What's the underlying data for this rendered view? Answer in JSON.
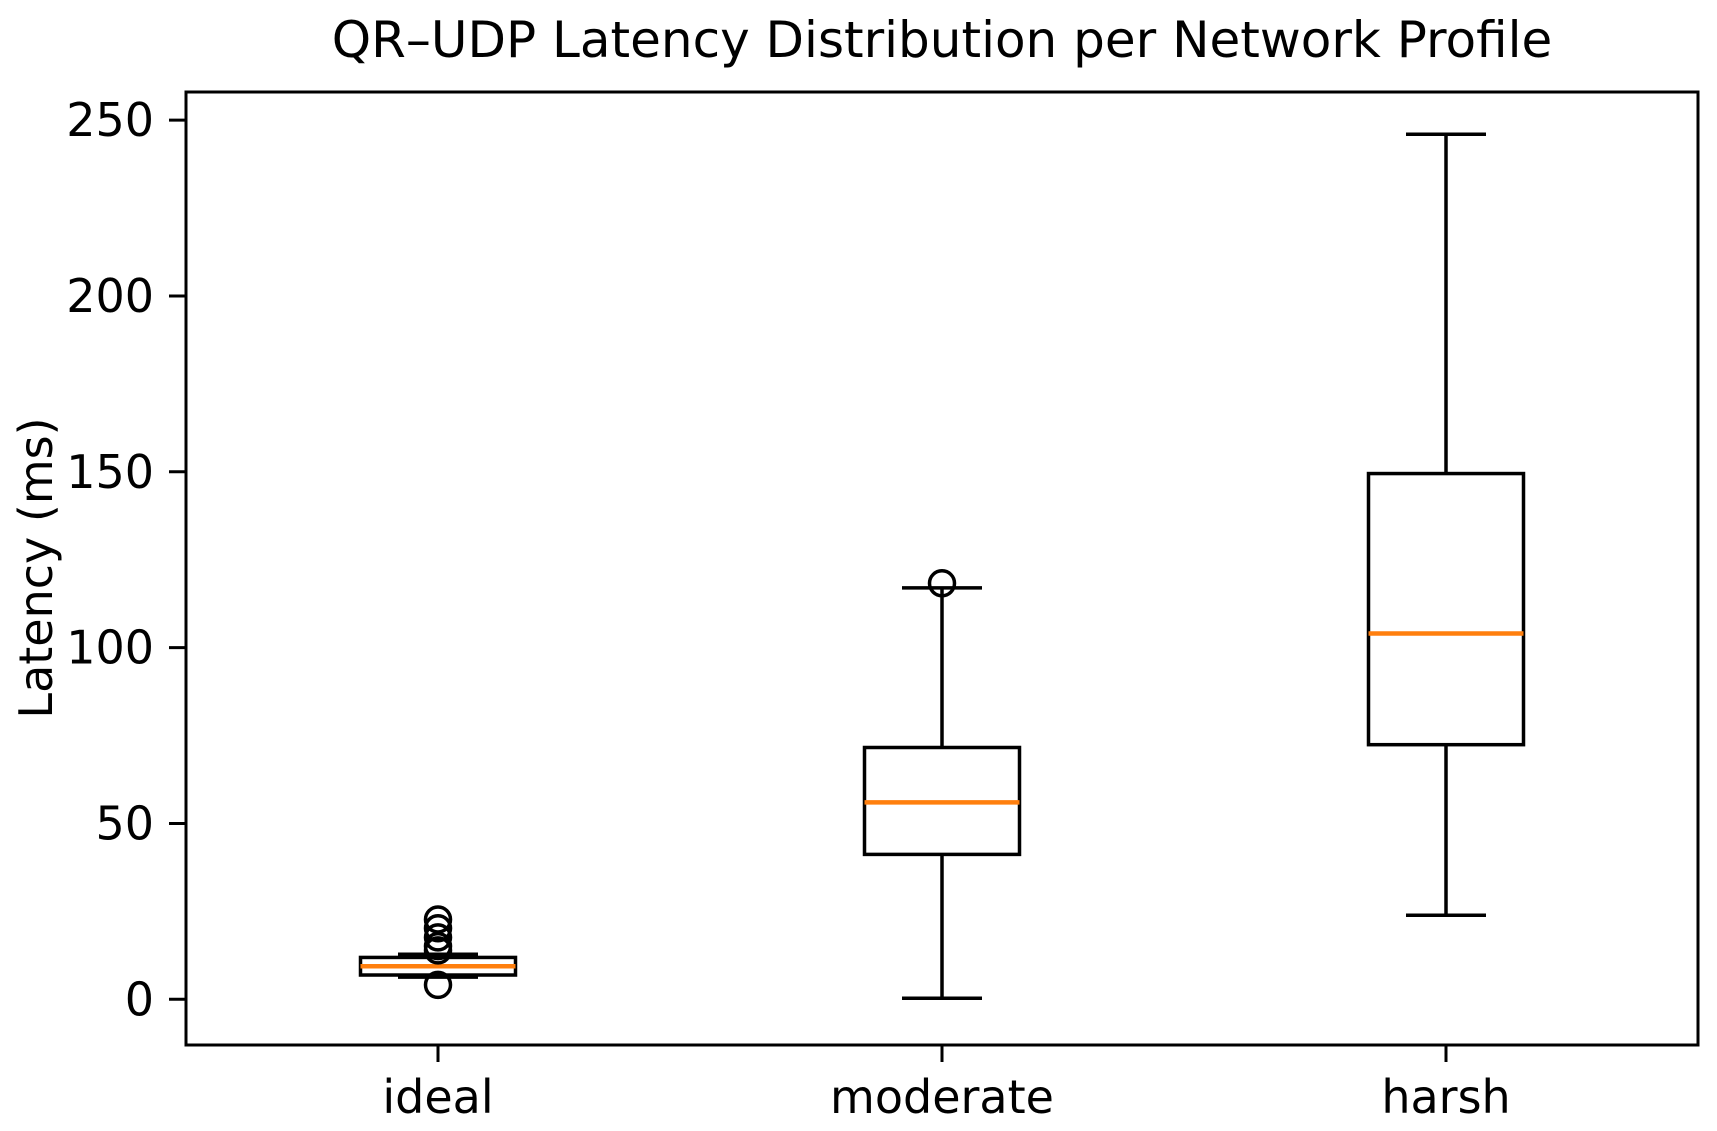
{
  "figure": {
    "title": "QR–UDP Latency Distribution per Network Profile",
    "ylabel": "Latency (ms)"
  },
  "chart_data": {
    "type": "box",
    "title": "QR–UDP Latency Distribution per Network Profile",
    "xlabel": "",
    "ylabel": "Latency (ms)",
    "categories": [
      "ideal",
      "moderate",
      "harsh"
    ],
    "yticks": [
      0,
      50,
      100,
      150,
      200,
      250
    ],
    "ylim": [
      -13,
      258
    ],
    "grid": false,
    "legend": null,
    "boxes": [
      {
        "label": "ideal",
        "whislo": 6.3,
        "q1": 6.9,
        "med": 9.4,
        "q3": 11.9,
        "whishi": 12.8,
        "fliers": [
          22.7,
          20.2,
          17.6,
          15.1,
          13.9,
          4.1
        ]
      },
      {
        "label": "moderate",
        "whislo": 0.3,
        "q1": 41.2,
        "med": 56.0,
        "q3": 71.6,
        "whishi": 117.0,
        "fliers": [
          118.3
        ]
      },
      {
        "label": "harsh",
        "whislo": 23.9,
        "q1": 72.4,
        "med": 104.0,
        "q3": 149.5,
        "whishi": 246.0,
        "fliers": []
      }
    ],
    "colors": {
      "line": "#000000",
      "median": "#ff7f0e",
      "box_fill": "#ffffff",
      "background": "#ffffff"
    }
  }
}
